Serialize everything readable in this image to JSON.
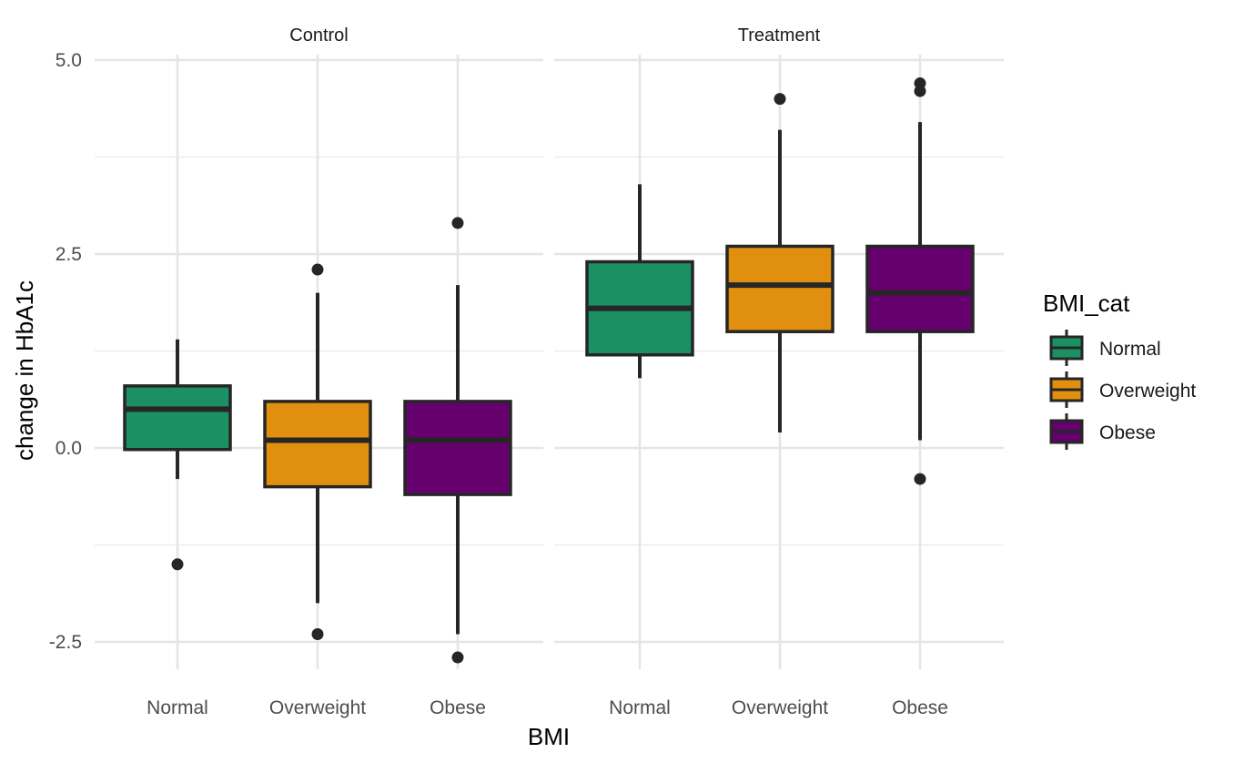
{
  "chart_data": {
    "type": "boxplot",
    "xlabel": "BMI",
    "ylabel": "change in HbA1c",
    "ylim": [
      -2.8,
      5.1
    ],
    "yticks": [
      -2.5,
      0.0,
      2.5,
      5.0
    ],
    "ytick_labels": [
      "-2.5",
      "0.0",
      "2.5",
      "5.0"
    ],
    "categories": [
      "Normal",
      "Overweight",
      "Obese"
    ],
    "facets": [
      {
        "label": "Control",
        "boxes": [
          {
            "category": "Normal",
            "q1": -0.02,
            "median": 0.5,
            "q3": 0.8,
            "whisker_low": -0.4,
            "whisker_high": 1.4,
            "outliers": [
              -1.5
            ]
          },
          {
            "category": "Overweight",
            "q1": -0.5,
            "median": 0.1,
            "q3": 0.6,
            "whisker_low": -2.0,
            "whisker_high": 2.0,
            "outliers": [
              2.3,
              -2.4
            ]
          },
          {
            "category": "Obese",
            "q1": -0.6,
            "median": 0.1,
            "q3": 0.6,
            "whisker_low": -2.4,
            "whisker_high": 2.1,
            "outliers": [
              2.9,
              -2.7
            ]
          }
        ]
      },
      {
        "label": "Treatment",
        "boxes": [
          {
            "category": "Normal",
            "q1": 1.2,
            "median": 1.8,
            "q3": 2.4,
            "whisker_low": 0.9,
            "whisker_high": 3.4,
            "outliers": []
          },
          {
            "category": "Overweight",
            "q1": 1.5,
            "median": 2.1,
            "q3": 2.6,
            "whisker_low": 0.2,
            "whisker_high": 4.1,
            "outliers": [
              4.5
            ]
          },
          {
            "category": "Obese",
            "q1": 1.5,
            "median": 2.0,
            "q3": 2.6,
            "whisker_low": 0.1,
            "whisker_high": 4.2,
            "outliers": [
              4.7,
              4.6,
              -0.4
            ]
          }
        ]
      }
    ],
    "legend": {
      "title": "BMI_cat",
      "placement": "right",
      "entries": [
        "Normal",
        "Overweight",
        "Obese"
      ]
    },
    "colors": {
      "Normal": "#1b9163",
      "Overweight": "#e0900e",
      "Obese": "#66006e",
      "outline": "#262626"
    },
    "grid": true
  }
}
